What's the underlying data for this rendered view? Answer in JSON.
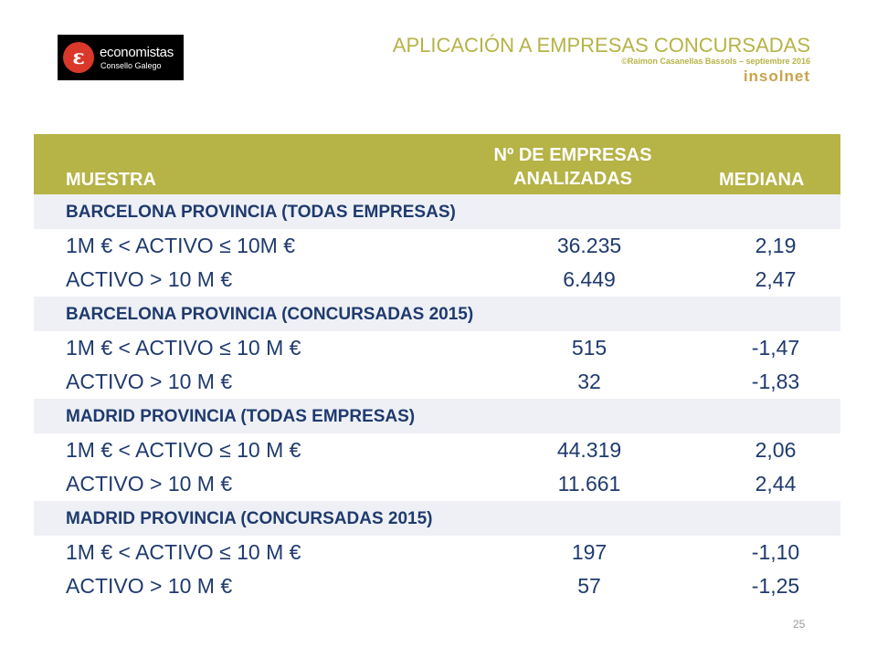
{
  "logo": {
    "icon": "economistas-e-logo-icon",
    "glyph": "ɛ",
    "name": "economistas",
    "subtitle": "Consello Galego"
  },
  "header": {
    "title": "APLICACIÓN A EMPRESAS CONCURSADAS",
    "credit": "©Raimon Casanellas Bassols – septiembre 2016",
    "brand": "insolnet"
  },
  "table": {
    "columns": {
      "sample": "MUESTRA",
      "count_line1": "Nº DE EMPRESAS",
      "count_line2": "ANALIZADAS",
      "median": "MEDIANA"
    },
    "groups": [
      {
        "title": "BARCELONA PROVINCIA (TODAS EMPRESAS)",
        "rows": [
          {
            "label": "1M € < ACTIVO ≤ 10M €",
            "count": "36.235",
            "median": "2,19"
          },
          {
            "label": "ACTIVO > 10 M €",
            "count": "6.449",
            "median": "2,47"
          }
        ]
      },
      {
        "title": "BARCELONA PROVINCIA (CONCURSADAS 2015)",
        "rows": [
          {
            "label": "1M € < ACTIVO ≤ 10 M €",
            "count": "515",
            "median": "-1,47"
          },
          {
            "label": "ACTIVO > 10 M €",
            "count": "32",
            "median": "-1,83"
          }
        ]
      },
      {
        "title": "MADRID PROVINCIA (TODAS EMPRESAS)",
        "rows": [
          {
            "label": "1M € < ACTIVO ≤ 10 M €",
            "count": "44.319",
            "median": "2,06"
          },
          {
            "label": "ACTIVO > 10 M €",
            "count": "11.661",
            "median": "2,44"
          }
        ]
      },
      {
        "title": "MADRID PROVINCIA (CONCURSADAS 2015)",
        "rows": [
          {
            "label": "1M € < ACTIVO ≤ 10 M €",
            "count": "197",
            "median": "-1,10"
          },
          {
            "label": "ACTIVO > 10 M €",
            "count": "57",
            "median": "-1,25"
          }
        ]
      }
    ]
  },
  "page_number": "25",
  "colors": {
    "header_olive": "#b6b347",
    "text_navy": "#1f3a6e",
    "group_band": "#eef0f5",
    "logo_red": "#d9382b"
  }
}
